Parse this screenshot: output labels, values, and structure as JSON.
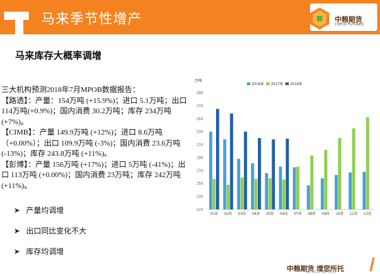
{
  "header": {
    "title": "马来季节性增产",
    "color": "#f58220"
  },
  "logo": {
    "cn": "中粮期货",
    "en": "COFCO FUTURES"
  },
  "subtitle": "马来库存大概率调增",
  "report": {
    "intro": "三大机构预测2018年7月MPOB数据报告：",
    "reuters": "【路透】：产量：154万吨 (+15.9%)；进口 5.1万吨；出口 114万吨(+0.9%)；国内消费 30.2万吨；库存 234万吨 (+7%)。",
    "cimb": "【CIMB】：产量 149.9万吨 (+12%)；进口 8.6万吨 （+0.00%）；出口 109.9万吨 (-3%)；国内消费 23.6万吨(-13%)；库存 243.8万吨 (+11%)。",
    "bloomberg": "【彭博】：产量 156万吨 (+17%)；进口 5万吨 (-41%)；出口 113万吨 (+0.00%)；国内消费 23万吨；库存 242万吨 (+11%)。"
  },
  "bullets": [
    "产量均调增",
    "出口同比变化不大",
    "库存均调增"
  ],
  "chart_data": {
    "type": "bar",
    "ylabel": "万吨",
    "ylim": [
      110,
      290
    ],
    "yticks": [
      110,
      130,
      150,
      170,
      190,
      210,
      230,
      250,
      270,
      290
    ],
    "categories": [
      "01月",
      "02月",
      "03月",
      "04月",
      "05月",
      "06月",
      "07月",
      "08月",
      "09月",
      "10月",
      "11月",
      "12月"
    ],
    "series": [
      {
        "name": "2016年",
        "color": "#4a9fd8",
        "values": [
          230,
          218,
          188,
          181,
          166,
          176,
          175,
          147,
          158,
          163,
          167,
          168
        ]
      },
      {
        "name": "2017年",
        "color": "#8fcf4f",
        "values": [
          157,
          148,
          159,
          157,
          158,
          156,
          176,
          193,
          202,
          220,
          235,
          252
        ]
      },
      {
        "name": "2018年",
        "color": "#1f5fa8",
        "values": [
          265,
          258,
          230,
          220,
          218,
          219,
          null,
          null,
          null,
          null,
          null,
          null
        ]
      }
    ],
    "legend_position": "top"
  },
  "footer": {
    "cn": "中粮期货 增您所托",
    "en": "WE GROW, WE TRUST",
    "page": "17"
  }
}
